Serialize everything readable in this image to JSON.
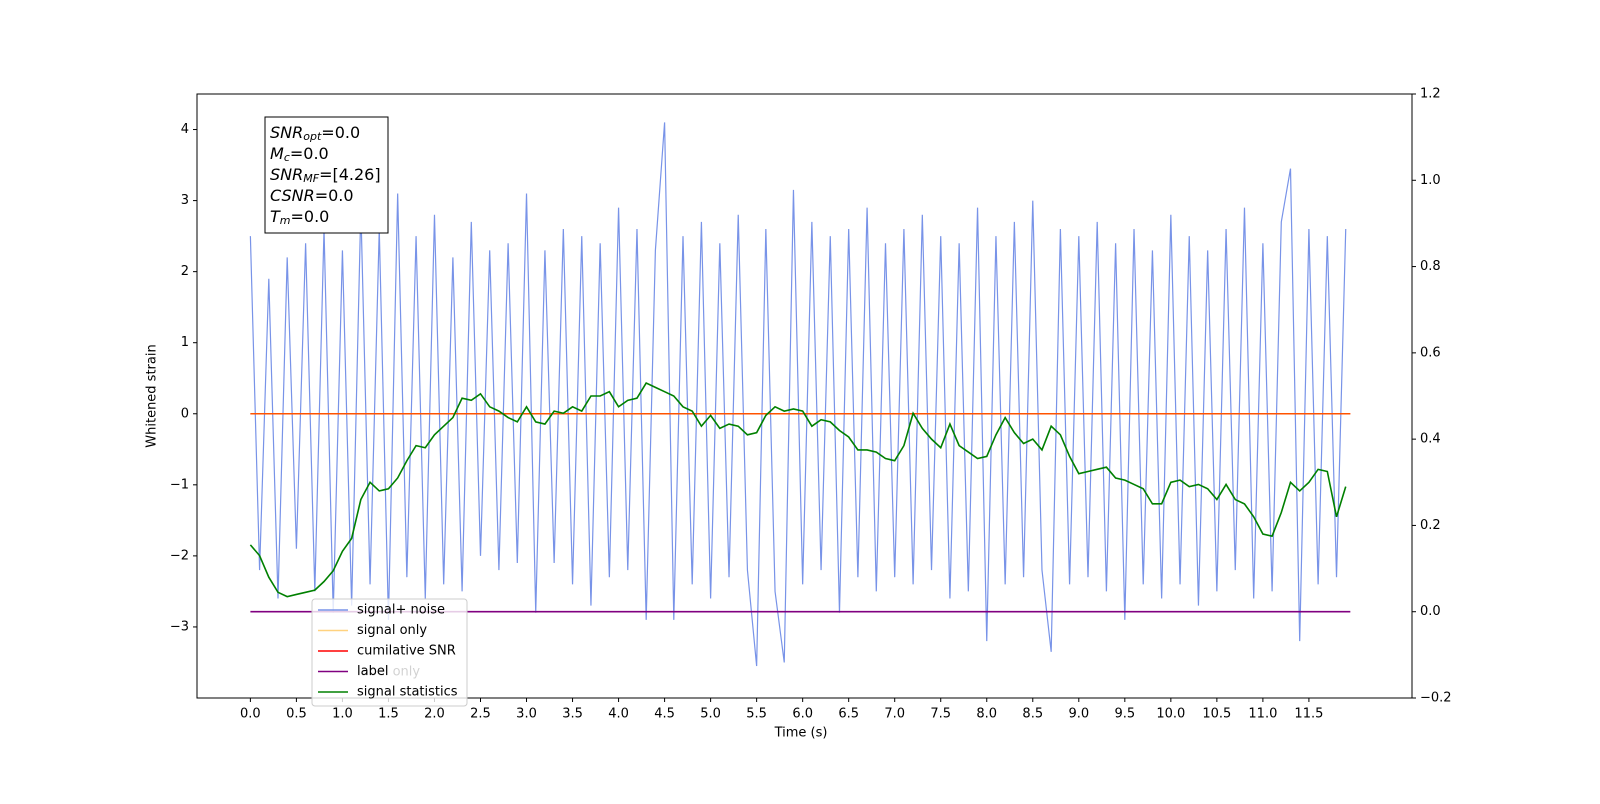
{
  "chart_data": {
    "type": "line",
    "xlabel": "Time (s)",
    "ylabel": "Whitened strain",
    "xlim": [
      -0.58,
      12.62
    ],
    "ylim": [
      -4.0,
      4.5
    ],
    "y2lim": [
      -0.2,
      1.2
    ],
    "xticks": [
      {
        "value": 0,
        "label": "0.0"
      },
      0.5,
      {
        "value": 1,
        "label": "1.0"
      },
      1.5,
      {
        "value": 2,
        "label": "2.0"
      },
      2.5,
      {
        "value": 3,
        "label": "3.0"
      },
      3.5,
      {
        "value": 4,
        "label": "4.0"
      },
      4.5,
      {
        "value": 5,
        "label": "5.0"
      },
      5.5,
      {
        "value": 6,
        "label": "6.0"
      },
      6.5,
      {
        "value": 7,
        "label": "7.0"
      },
      7.5,
      {
        "value": 8,
        "label": "8.0"
      },
      8.5,
      {
        "value": 9,
        "label": "9.0"
      },
      9.5,
      {
        "value": 10,
        "label": "10.0"
      },
      10.5,
      {
        "value": 11,
        "label": "11.0"
      },
      11.5
    ],
    "yticks": [
      {
        "value": -3,
        "label": "−3"
      },
      {
        "value": -2,
        "label": "−2"
      },
      {
        "value": -1,
        "label": "−1"
      },
      0,
      1,
      2,
      3,
      4
    ],
    "y2ticks": [
      {
        "value": -0.2,
        "label": "−0.2"
      },
      {
        "value": 0,
        "label": "0.0"
      },
      0.2,
      0.4,
      0.6,
      0.8,
      {
        "value": 1,
        "label": "1.0"
      },
      1.2
    ],
    "x": [
      0.0,
      0.1,
      0.2,
      0.3,
      0.4,
      0.5,
      0.6,
      0.7,
      0.8,
      0.9,
      1.0,
      1.1,
      1.2,
      1.3,
      1.4,
      1.5,
      1.6,
      1.7,
      1.8,
      1.9,
      2.0,
      2.1,
      2.2,
      2.3,
      2.4,
      2.5,
      2.6,
      2.7,
      2.8,
      2.9,
      3.0,
      3.1,
      3.2,
      3.3,
      3.4,
      3.5,
      3.6,
      3.7,
      3.8,
      3.9,
      4.0,
      4.1,
      4.2,
      4.3,
      4.4,
      4.5,
      4.6,
      4.7,
      4.8,
      4.9,
      5.0,
      5.1,
      5.2,
      5.3,
      5.4,
      5.5,
      5.6,
      5.7,
      5.8,
      5.9,
      6.0,
      6.1,
      6.2,
      6.3,
      6.4,
      6.5,
      6.6,
      6.7,
      6.8,
      6.9,
      7.0,
      7.1,
      7.2,
      7.3,
      7.4,
      7.5,
      7.6,
      7.7,
      7.8,
      7.9,
      8.0,
      8.1,
      8.2,
      8.3,
      8.4,
      8.5,
      8.6,
      8.7,
      8.8,
      8.9,
      9.0,
      9.1,
      9.2,
      9.3,
      9.4,
      9.5,
      9.6,
      9.7,
      9.8,
      9.9,
      10.0,
      10.1,
      10.2,
      10.3,
      10.4,
      10.5,
      10.6,
      10.7,
      10.8,
      10.9,
      11.0,
      11.1,
      11.2,
      11.3,
      11.4,
      11.5,
      11.6,
      11.7,
      11.8,
      11.9
    ],
    "series": [
      {
        "name": "signal+ noise",
        "color": "#7893e8",
        "alpha": 1,
        "values": [
          2.5,
          -2.2,
          1.9,
          -2.6,
          2.2,
          -1.9,
          2.4,
          -2.5,
          2.6,
          -2.8,
          2.3,
          -2.7,
          2.9,
          -2.4,
          2.6,
          -2.9,
          3.1,
          -2.3,
          2.5,
          -2.6,
          2.8,
          -2.4,
          2.2,
          -2.5,
          2.7,
          -2.0,
          2.3,
          -2.2,
          2.4,
          -2.1,
          3.1,
          -2.8,
          2.3,
          -2.1,
          2.6,
          -2.4,
          2.5,
          -2.7,
          2.4,
          -2.3,
          2.9,
          -2.2,
          2.6,
          -2.9,
          2.3,
          4.1,
          -2.9,
          2.5,
          -2.4,
          2.7,
          -2.6,
          2.4,
          -2.3,
          2.8,
          -2.2,
          -3.55,
          2.6,
          -2.5,
          -3.5,
          3.15,
          -2.4,
          2.7,
          -2.2,
          2.5,
          -2.8,
          2.6,
          -2.3,
          2.9,
          -2.5,
          2.4,
          -2.3,
          2.6,
          -2.4,
          2.8,
          -2.2,
          2.5,
          -2.6,
          2.4,
          -2.5,
          2.9,
          -3.2,
          2.5,
          -2.4,
          2.7,
          -2.3,
          3.0,
          -2.2,
          -3.35,
          2.6,
          -2.4,
          2.5,
          -2.3,
          2.7,
          -2.5,
          2.4,
          -2.9,
          2.6,
          -2.4,
          2.3,
          -2.6,
          2.8,
          -2.4,
          2.5,
          -2.7,
          2.3,
          -2.5,
          2.6,
          -2.2,
          2.9,
          -2.6,
          2.4,
          -2.5,
          2.7,
          3.45,
          -3.2,
          2.6,
          -2.4,
          2.5,
          -2.3,
          2.6
        ]
      },
      {
        "name": "cumilative SNR",
        "color": "#ff0000",
        "alpha": 1,
        "x": [
          0.0,
          11.95
        ],
        "values": [
          0,
          0
        ]
      },
      {
        "name": "signal only",
        "color": "#ffa500",
        "alpha": 0.5,
        "x": [
          0.0,
          11.95
        ],
        "values": [
          0,
          0
        ]
      },
      {
        "name": "label",
        "color": "#800080",
        "alpha": 1,
        "axis": "y2",
        "x": [
          0.0,
          11.95
        ],
        "values": [
          0,
          0
        ]
      },
      {
        "name": "signal statistics",
        "color": "#008000",
        "alpha": 1,
        "axis": "y2",
        "values": [
          0.155,
          0.13,
          0.08,
          0.045,
          0.035,
          0.04,
          0.045,
          0.05,
          0.07,
          0.095,
          0.14,
          0.17,
          0.26,
          0.3,
          0.28,
          0.285,
          0.31,
          0.35,
          0.385,
          0.38,
          0.41,
          0.43,
          0.45,
          0.495,
          0.49,
          0.505,
          0.475,
          0.465,
          0.45,
          0.44,
          0.475,
          0.44,
          0.435,
          0.465,
          0.46,
          0.475,
          0.465,
          0.5,
          0.5,
          0.51,
          0.475,
          0.49,
          0.495,
          0.53,
          0.52,
          0.51,
          0.5,
          0.475,
          0.465,
          0.43,
          0.455,
          0.425,
          0.435,
          0.43,
          0.41,
          0.415,
          0.455,
          0.475,
          0.465,
          0.47,
          0.465,
          0.43,
          0.445,
          0.44,
          0.42,
          0.405,
          0.375,
          0.375,
          0.37,
          0.355,
          0.35,
          0.385,
          0.46,
          0.425,
          0.4,
          0.38,
          0.435,
          0.385,
          0.37,
          0.355,
          0.36,
          0.41,
          0.45,
          0.415,
          0.39,
          0.4,
          0.375,
          0.43,
          0.41,
          0.36,
          0.32,
          0.325,
          0.33,
          0.335,
          0.31,
          0.305,
          0.295,
          0.285,
          0.25,
          0.25,
          0.3,
          0.305,
          0.29,
          0.295,
          0.285,
          0.26,
          0.295,
          0.26,
          0.25,
          0.22,
          0.18,
          0.175,
          0.23,
          0.3,
          0.28,
          0.3,
          0.33,
          0.325,
          0.22,
          0.29
        ]
      }
    ],
    "legend_order": [
      0,
      2,
      1,
      3,
      4
    ],
    "legend_ghost_text": "label only",
    "annotation_box": [
      {
        "symbol": "SNR",
        "sub": "opt",
        "value": "=0.0"
      },
      {
        "symbol": "M",
        "sub": "c",
        "value": "=0.0"
      },
      {
        "symbol": "SNR",
        "sub": "MF",
        "value": "=[4.26]"
      },
      {
        "symbol": "CSNR",
        "value": "=0.0"
      },
      {
        "symbol": "T",
        "sub": "m",
        "value": "=0.0"
      }
    ]
  }
}
